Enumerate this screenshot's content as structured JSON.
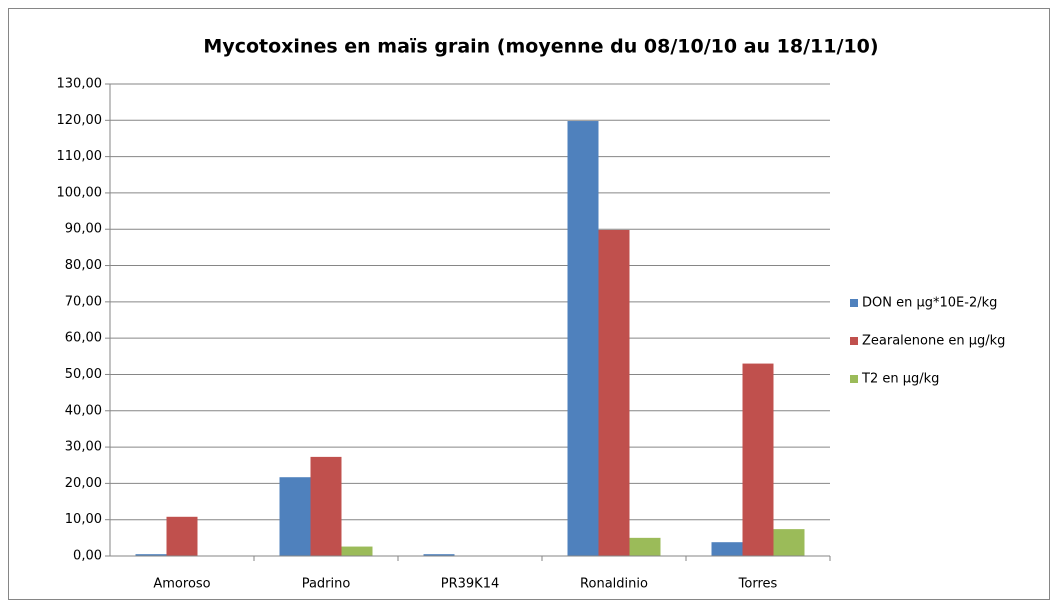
{
  "chart_data": {
    "type": "bar",
    "title": "Mycotoxines en maïs grain (moyenne du 08/10/10 au 18/11/10)",
    "categories": [
      "Amoroso",
      "Padrino",
      "PR39K14",
      "Ronaldinio",
      "Torres"
    ],
    "series": [
      {
        "name": "DON en µg*10E-2/kg",
        "color": "#4f81bd",
        "values": [
          0.5,
          21.7,
          0.5,
          119.8,
          3.8
        ]
      },
      {
        "name": "Zearalenone en µg/kg",
        "color": "#c0504d",
        "values": [
          10.8,
          27.3,
          0,
          89.8,
          53.0
        ]
      },
      {
        "name": "T2 en µg/kg",
        "color": "#9bbb59",
        "values": [
          0,
          2.6,
          0,
          5.0,
          7.4
        ]
      }
    ],
    "ylim": [
      0,
      130
    ],
    "yticks": [
      {
        "value": 0,
        "label": "0,00"
      },
      {
        "value": 10,
        "label": "10,00"
      },
      {
        "value": 20,
        "label": "20,00"
      },
      {
        "value": 30,
        "label": "30,00"
      },
      {
        "value": 40,
        "label": "40,00"
      },
      {
        "value": 50,
        "label": "50,00"
      },
      {
        "value": 60,
        "label": "60,00"
      },
      {
        "value": 70,
        "label": "70,00"
      },
      {
        "value": 80,
        "label": "80,00"
      },
      {
        "value": 90,
        "label": "90,00"
      },
      {
        "value": 100,
        "label": "100,00"
      },
      {
        "value": 110,
        "label": "110,00"
      },
      {
        "value": 120,
        "label": "120,00"
      },
      {
        "value": 130,
        "label": "130,00"
      }
    ],
    "grid": true,
    "legend": "right"
  }
}
